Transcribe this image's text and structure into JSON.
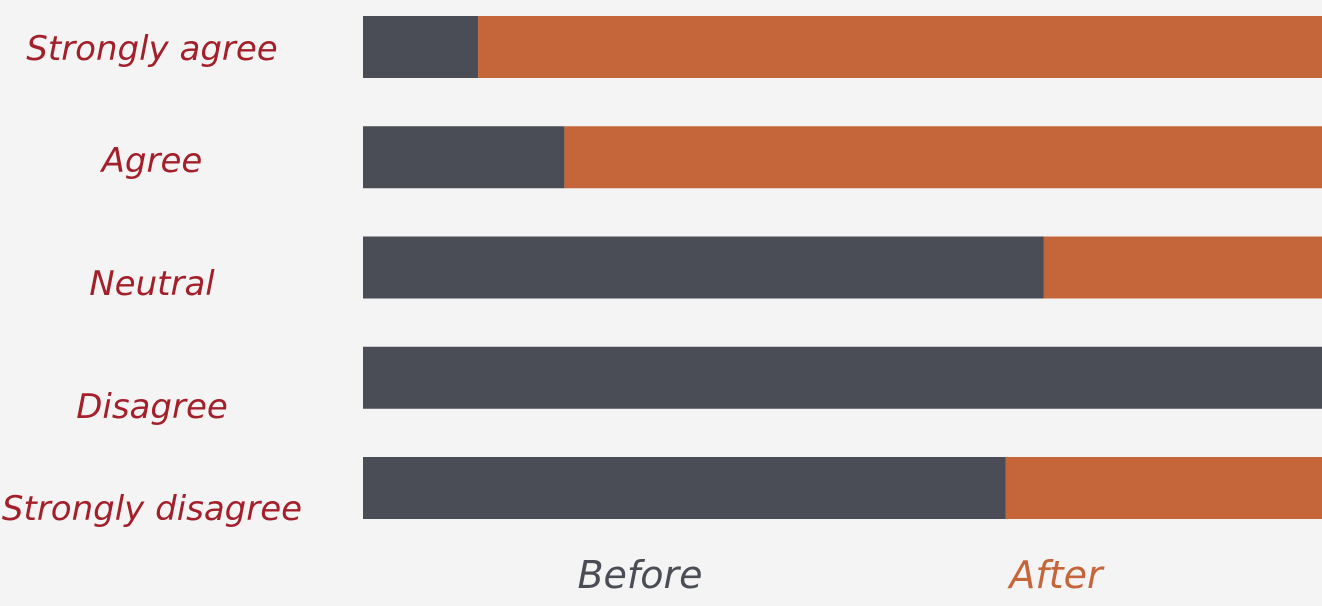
{
  "chart_data": {
    "type": "bar",
    "stacked": true,
    "normalized": true,
    "orientation": "horizontal",
    "categories": [
      "Strongly agree",
      "Agree",
      "Neutral",
      "Disagree",
      "Strongly disagree"
    ],
    "series": [
      {
        "name": "Before",
        "color": "#4a4d56",
        "values": [
          0.12,
          0.21,
          0.71,
          1.0,
          0.67
        ]
      },
      {
        "name": "After",
        "color": "#c5663a",
        "values": [
          0.88,
          0.79,
          0.29,
          0.0,
          0.33
        ]
      }
    ],
    "category_label_color": "#a3202a",
    "legend_placement": "bottom",
    "grid": false,
    "ylim": [
      0,
      1
    ]
  }
}
